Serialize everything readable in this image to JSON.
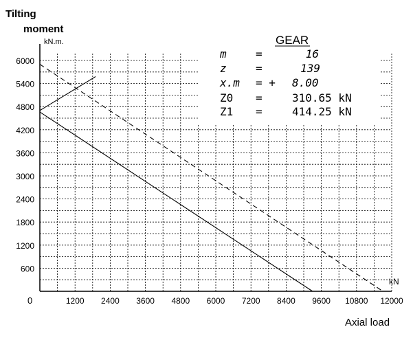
{
  "chart_data": {
    "type": "line",
    "title": "",
    "ylabel_line1": "Tilting",
    "ylabel_line2": "moment",
    "y_unit": "kN.m.",
    "xlabel": "Axial load",
    "x_unit": "kN",
    "origin_label": "0",
    "xlim": [
      0,
      12000
    ],
    "ylim": [
      0,
      6000
    ],
    "x_ticks": [
      1200,
      2400,
      3600,
      4800,
      6000,
      7200,
      8400,
      9600,
      10800,
      12000
    ],
    "y_ticks": [
      600,
      1200,
      1800,
      2400,
      3000,
      3600,
      4200,
      4800,
      5400,
      6000
    ],
    "grid": true,
    "series": [
      {
        "style": "dashed",
        "x": [
          0,
          11700
        ],
        "y": [
          5900,
          0
        ]
      },
      {
        "style": "solid",
        "x": [
          0,
          9300
        ],
        "y": [
          4660,
          0
        ]
      },
      {
        "style": "solid",
        "x": [
          0,
          1900
        ],
        "y": [
          4700,
          5580
        ]
      }
    ],
    "gear_table": {
      "title": "GEAR",
      "rows": [
        {
          "name": "m",
          "sign": "=",
          "value": "16"
        },
        {
          "name": "z",
          "sign": "=",
          "value": "139"
        },
        {
          "name": "x.m",
          "sign": "= +",
          "value": "8.00"
        },
        {
          "name": "Z0",
          "sign": "=",
          "value": "310.65 kN"
        },
        {
          "name": "Z1",
          "sign": "=",
          "value": "414.25 kN"
        }
      ]
    }
  }
}
